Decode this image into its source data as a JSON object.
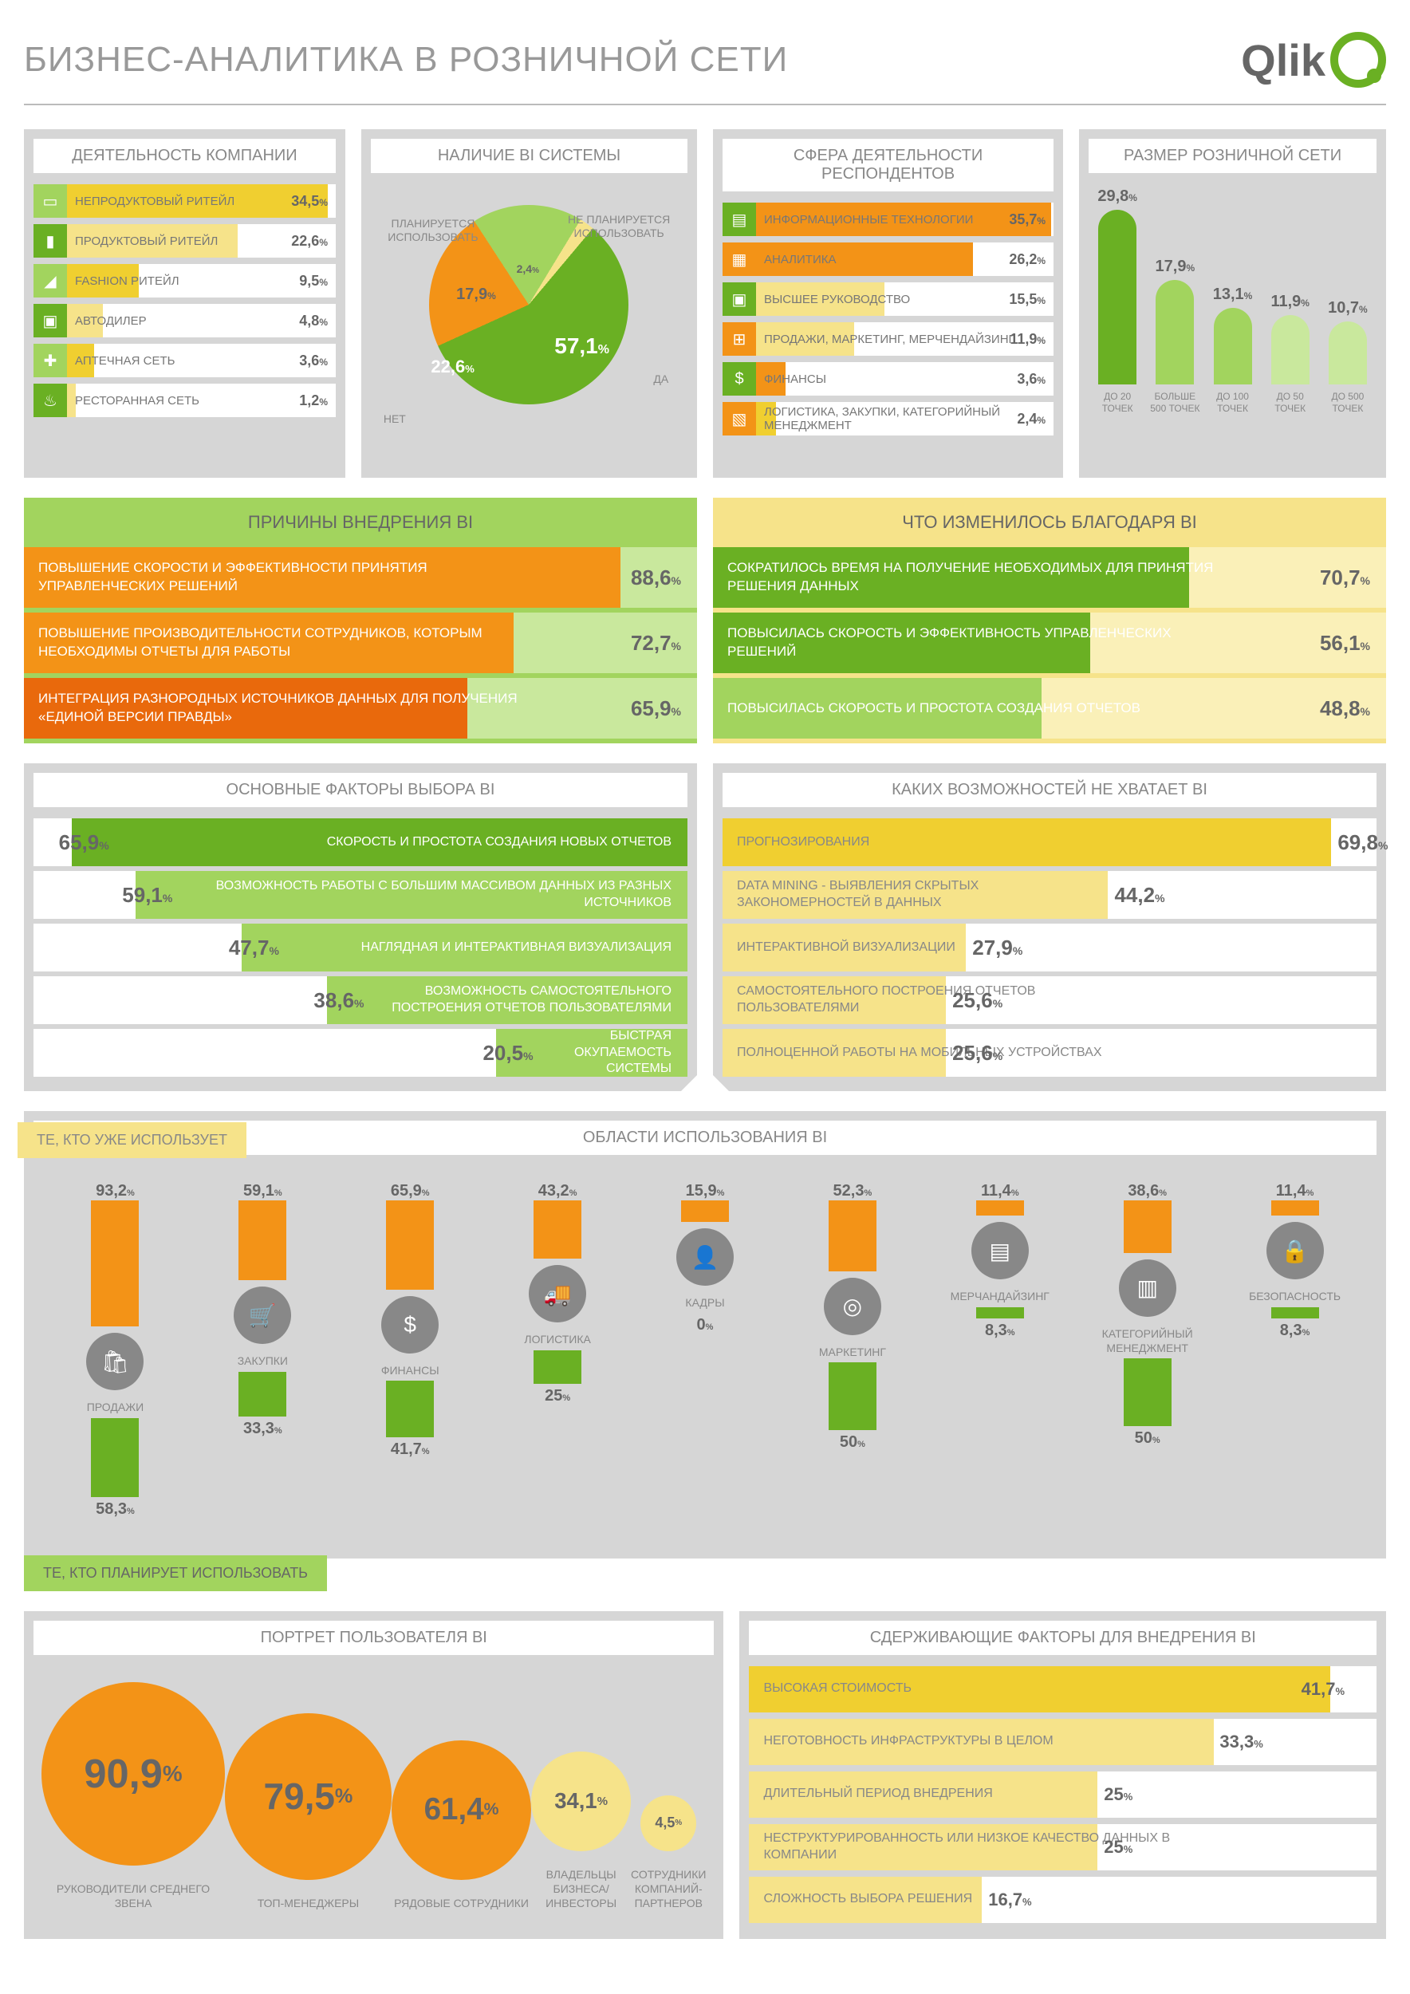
{
  "title": "БИЗНЕС-АНАЛИТИКА В РОЗНИЧНОЙ СЕТИ",
  "logo": "Qlik",
  "colors": {
    "orange": "#f39317",
    "orangeDark": "#e9690c",
    "green": "#6ab023",
    "greenLight": "#a2d45e",
    "greenPale": "#c9e89d",
    "yellow": "#f0cf30",
    "yellowPale": "#f6e38a",
    "grey": "#d6d6d6",
    "panel": "#d6d6d6",
    "text": "#777"
  },
  "company": {
    "title": "ДЕЯТЕЛЬНОСТЬ КОМПАНИИ",
    "items": [
      {
        "ic": "▭",
        "label": "НЕПРОДУКТОВЫЙ РИТЕЙЛ",
        "val": 34.5,
        "c1": "#a2d45e",
        "c2": "#f0cf30"
      },
      {
        "ic": "▮",
        "label": "ПРОДУКТОВЫЙ РИТЕЙЛ",
        "val": 22.6,
        "c1": "#6ab023",
        "c2": "#f6e38a"
      },
      {
        "ic": "◢",
        "label": "FASHION РИТЕЙЛ",
        "val": 9.5,
        "c1": "#a2d45e",
        "c2": "#f0cf30"
      },
      {
        "ic": "▣",
        "label": "АВТОДИЛЕР",
        "val": 4.8,
        "c1": "#6ab023",
        "c2": "#f6e38a"
      },
      {
        "ic": "✚",
        "label": "АПТЕЧНАЯ СЕТЬ",
        "val": 3.6,
        "c1": "#a2d45e",
        "c2": "#f0cf30"
      },
      {
        "ic": "♨",
        "label": "РЕСТОРАННАЯ СЕТЬ",
        "val": 1.2,
        "c1": "#6ab023",
        "c2": "#f6e38a"
      }
    ]
  },
  "pie": {
    "title": "НАЛИЧИЕ BI СИСТЕМЫ",
    "slices": [
      {
        "label": "ДА",
        "val": 57.1,
        "color": "#6ab023"
      },
      {
        "label": "НЕТ",
        "val": 22.6,
        "color": "#f39317"
      },
      {
        "label": "ПЛАНИРУЕТСЯ ИСПОЛЬЗОВАТЬ",
        "val": 17.9,
        "color": "#a2d45e"
      },
      {
        "label": "НЕ ПЛАНИРУЕТСЯ ИСПОЛЬЗОВАТЬ",
        "val": 2.4,
        "color": "#f6e38a"
      }
    ]
  },
  "sphere": {
    "title": "СФЕРА ДЕЯТЕЛЬНОСТИ РЕСПОНДЕНТОВ",
    "items": [
      {
        "ic": "▤",
        "label": "ИНФОРМАЦИОННЫЕ ТЕХНОЛОГИИ",
        "val": 35.7,
        "c1": "#6ab023",
        "c2": "#f39317"
      },
      {
        "ic": "▦",
        "label": "АНАЛИТИКА",
        "val": 26.2,
        "c1": "#f39317",
        "c2": "#f39317"
      },
      {
        "ic": "▣",
        "label": "ВЫСШЕЕ РУКОВОДСТВО",
        "val": 15.5,
        "c1": "#6ab023",
        "c2": "#f6e38a"
      },
      {
        "ic": "⊞",
        "label": "ПРОДАЖИ, МАРКЕТИНГ, МЕРЧЕНДАЙЗИНГ",
        "val": 11.9,
        "c1": "#f39317",
        "c2": "#f6e38a"
      },
      {
        "ic": "$",
        "label": "ФИНАНСЫ",
        "val": 3.6,
        "c1": "#6ab023",
        "c2": "#f39317"
      },
      {
        "ic": "▧",
        "label": "ЛОГИСТИКА, ЗАКУПКИ, КАТЕГОРИЙНЫЙ МЕНЕДЖМЕНТ",
        "val": 2.4,
        "c1": "#f39317",
        "c2": "#f0cf30"
      }
    ]
  },
  "size": {
    "title": "РАЗМЕР РОЗНИЧНОЙ СЕТИ",
    "items": [
      {
        "label": "ДО 20 ТОЧЕК",
        "val": 29.8,
        "color": "#6ab023"
      },
      {
        "label": "БОЛЬШЕ 500 ТОЧЕК",
        "val": 17.9,
        "color": "#a2d45e"
      },
      {
        "label": "ДО 100 ТОЧЕК",
        "val": 13.1,
        "color": "#a2d45e"
      },
      {
        "label": "ДО 50 ТОЧЕК",
        "val": 11.9,
        "color": "#c9e89d"
      },
      {
        "label": "ДО 500 ТОЧЕК",
        "val": 10.7,
        "color": "#c9e89d"
      }
    ],
    "max": 30
  },
  "reasons": {
    "title": "ПРИЧИНЫ ВНЕДРЕНИЯ BI",
    "headBg": "#a2d45e",
    "items": [
      {
        "txt": "ПОВЫШЕНИЕ СКОРОСТИ И ЭФФЕКТИВНОСТИ ПРИНЯТИЯ УПРАВЛЕНЧЕСКИХ РЕШЕНИЙ",
        "val": 88.6,
        "color": "#f39317"
      },
      {
        "txt": "ПОВЫШЕНИЕ ПРОИЗВОДИТЕЛЬНОСТИ СОТРУДНИКОВ, КОТОРЫМ НЕОБХОДИМЫ ОТЧЕТЫ ДЛЯ РАБОТЫ",
        "val": 72.7,
        "color": "#f39317"
      },
      {
        "txt": "ИНТЕГРАЦИЯ РАЗНОРОДНЫХ ИСТОЧНИКОВ ДАННЫХ ДЛЯ ПОЛУЧЕНИЯ «ЕДИНОЙ ВЕРСИИ ПРАВДЫ»",
        "val": 65.9,
        "color": "#e9690c"
      }
    ]
  },
  "changes": {
    "title": "ЧТО ИЗМЕНИЛОСЬ БЛАГОДАРЯ BI",
    "headBg": "#f6e38a",
    "items": [
      {
        "txt": "СОКРАТИЛОСЬ ВРЕМЯ НА ПОЛУЧЕНИЕ НЕОБХОДИМЫХ ДЛЯ ПРИНЯТИЯ РЕШЕНИЯ ДАННЫХ",
        "val": 70.7,
        "color": "#6ab023"
      },
      {
        "txt": "ПОВЫСИЛАСЬ СКОРОСТЬ И ЭФФЕКТИВНОСТЬ УПРАВЛЕНЧЕСКИХ РЕШЕНИЙ",
        "val": 56.1,
        "color": "#6ab023"
      },
      {
        "txt": "ПОВЫСИЛАСЬ СКОРОСТЬ И ПРОСТОТА СОЗДАНИЯ ОТЧЕТОВ",
        "val": 48.8,
        "color": "#a2d45e"
      }
    ]
  },
  "factors": {
    "title": "ОСНОВНЫЕ ФАКТОРЫ ВЫБОРА BI",
    "items": [
      {
        "txt": "СКОРОСТЬ И ПРОСТОТА СОЗДАНИЯ НОВЫХ ОТЧЕТОВ",
        "val": 65.9,
        "color": "#6ab023"
      },
      {
        "txt": "ВОЗМОЖНОСТЬ РАБОТЫ С БОЛЬШИМ МАССИВОМ ДАННЫХ ИЗ РАЗНЫХ ИСТОЧНИКОВ",
        "val": 59.1,
        "color": "#a2d45e"
      },
      {
        "txt": "НАГЛЯДНАЯ И ИНТЕРАКТИВНАЯ ВИЗУАЛИЗАЦИЯ",
        "val": 47.7,
        "color": "#a2d45e"
      },
      {
        "txt": "ВОЗМОЖНОСТЬ САМОСТОЯТЕЛЬНОГО ПОСТРОЕНИЯ ОТЧЕТОВ ПОЛЬЗОВАТЕЛЯМИ",
        "val": 38.6,
        "color": "#a2d45e"
      },
      {
        "txt": "БЫСТРАЯ ОКУПАЕМОСТЬ СИСТЕМЫ",
        "val": 20.5,
        "color": "#a2d45e"
      }
    ]
  },
  "missing": {
    "title": "КАКИХ ВОЗМОЖНОСТЕЙ НЕ ХВАТАЕТ BI",
    "items": [
      {
        "txt": "ПРОГНОЗИРОВАНИЯ",
        "val": 69.8,
        "color": "#f0cf30"
      },
      {
        "txt": "DATA MINING - ВЫЯВЛЕНИЯ СКРЫТЫХ ЗАКОНОМЕРНОСТЕЙ В ДАННЫХ",
        "val": 44.2,
        "color": "#f6e38a"
      },
      {
        "txt": "ИНТЕРАКТИВНОЙ ВИЗУАЛИЗАЦИИ",
        "val": 27.9,
        "color": "#f6e38a"
      },
      {
        "txt": "САМОСТОЯТЕЛЬНОГО ПОСТРОЕНИЯ ОТЧЕТОВ ПОЛЬЗОВАТЕЛЯМИ",
        "val": 25.6,
        "color": "#f6e38a"
      },
      {
        "txt": "ПОЛНОЦЕННОЙ РАБОТЫ НА МОБИЛЬНЫХ УСТРОЙСТВАХ",
        "val": 25.6,
        "color": "#f6e38a"
      }
    ]
  },
  "usage": {
    "title": "ОБЛАСТИ ИСПОЛЬЗОВАНИЯ BI",
    "topTab": "ТЕ, КТО УЖЕ ИСПОЛЬЗУЕТ",
    "botTab": "ТЕ, КТО ПЛАНИРУЕТ ИСПОЛЬЗОВАТЬ",
    "max": 100,
    "items": [
      {
        "ic": "🛍",
        "label": "ПРОДАЖИ",
        "up": 93.2,
        "down": 58.3
      },
      {
        "ic": "🛒",
        "label": "ЗАКУПКИ",
        "up": 59.1,
        "down": 33.3
      },
      {
        "ic": "$",
        "label": "ФИНАНСЫ",
        "up": 65.9,
        "down": 41.7
      },
      {
        "ic": "🚚",
        "label": "ЛОГИСТИКА",
        "up": 43.2,
        "down": 25
      },
      {
        "ic": "👤",
        "label": "КАДРЫ",
        "up": 15.9,
        "down": 0
      },
      {
        "ic": "◎",
        "label": "МАРКЕТИНГ",
        "up": 52.3,
        "down": 50
      },
      {
        "ic": "▤",
        "label": "МЕРЧАНДАЙЗИНГ",
        "up": 11.4,
        "down": 8.3
      },
      {
        "ic": "▥",
        "label": "КАТЕГОРИЙНЫЙ МЕНЕДЖМЕНТ",
        "up": 38.6,
        "down": 50
      },
      {
        "ic": "🔒",
        "label": "БЕЗОПАСНОСТЬ",
        "up": 11.4,
        "down": 8.3
      }
    ]
  },
  "portrait": {
    "title": "ПОРТРЕТ ПОЛЬЗОВАТЕЛЯ BI",
    "maxSize": 230,
    "minSize": 70,
    "items": [
      {
        "label": "РУКОВОДИТЕЛИ СРЕДНЕГО ЗВЕНА",
        "val": 90.9,
        "color": "#f39317"
      },
      {
        "label": "ТОП-МЕНЕДЖЕРЫ",
        "val": 79.5,
        "color": "#f39317"
      },
      {
        "label": "РЯДОВЫЕ СОТРУДНИКИ",
        "val": 61.4,
        "color": "#f39317"
      },
      {
        "label": "ВЛАДЕЛЬЦЫ БИЗНЕСА/ ИНВЕСТОРЫ",
        "val": 34.1,
        "color": "#f6e38a"
      },
      {
        "label": "СОТРУДНИКИ КОМПАНИЙ-ПАРТНЕРОВ",
        "val": 4.5,
        "color": "#f6e38a"
      }
    ]
  },
  "constraints": {
    "title": "СДЕРЖИВАЮЩИЕ ФАКТОРЫ ДЛЯ ВНЕДРЕНИЯ BI",
    "items": [
      {
        "txt": "ВЫСОКАЯ СТОИМОСТЬ",
        "val": 41.7,
        "color": "#f0cf30"
      },
      {
        "txt": "НЕГОТОВНОСТЬ ИНФРАСТРУКТУРЫ В ЦЕЛОМ",
        "val": 33.3,
        "color": "#f6e38a"
      },
      {
        "txt": "ДЛИТЕЛЬНЫЙ ПЕРИОД ВНЕДРЕНИЯ",
        "val": 25,
        "color": "#f6e38a"
      },
      {
        "txt": "НЕСТРУКТУРИРОВАННОСТЬ ИЛИ НИЗКОЕ КАЧЕСТВО ДАННЫХ В КОМПАНИИ",
        "val": 25,
        "color": "#f6e38a"
      },
      {
        "txt": "СЛОЖНОСТЬ ВЫБОРА РЕШЕНИЯ",
        "val": 16.7,
        "color": "#f6e38a"
      }
    ]
  }
}
